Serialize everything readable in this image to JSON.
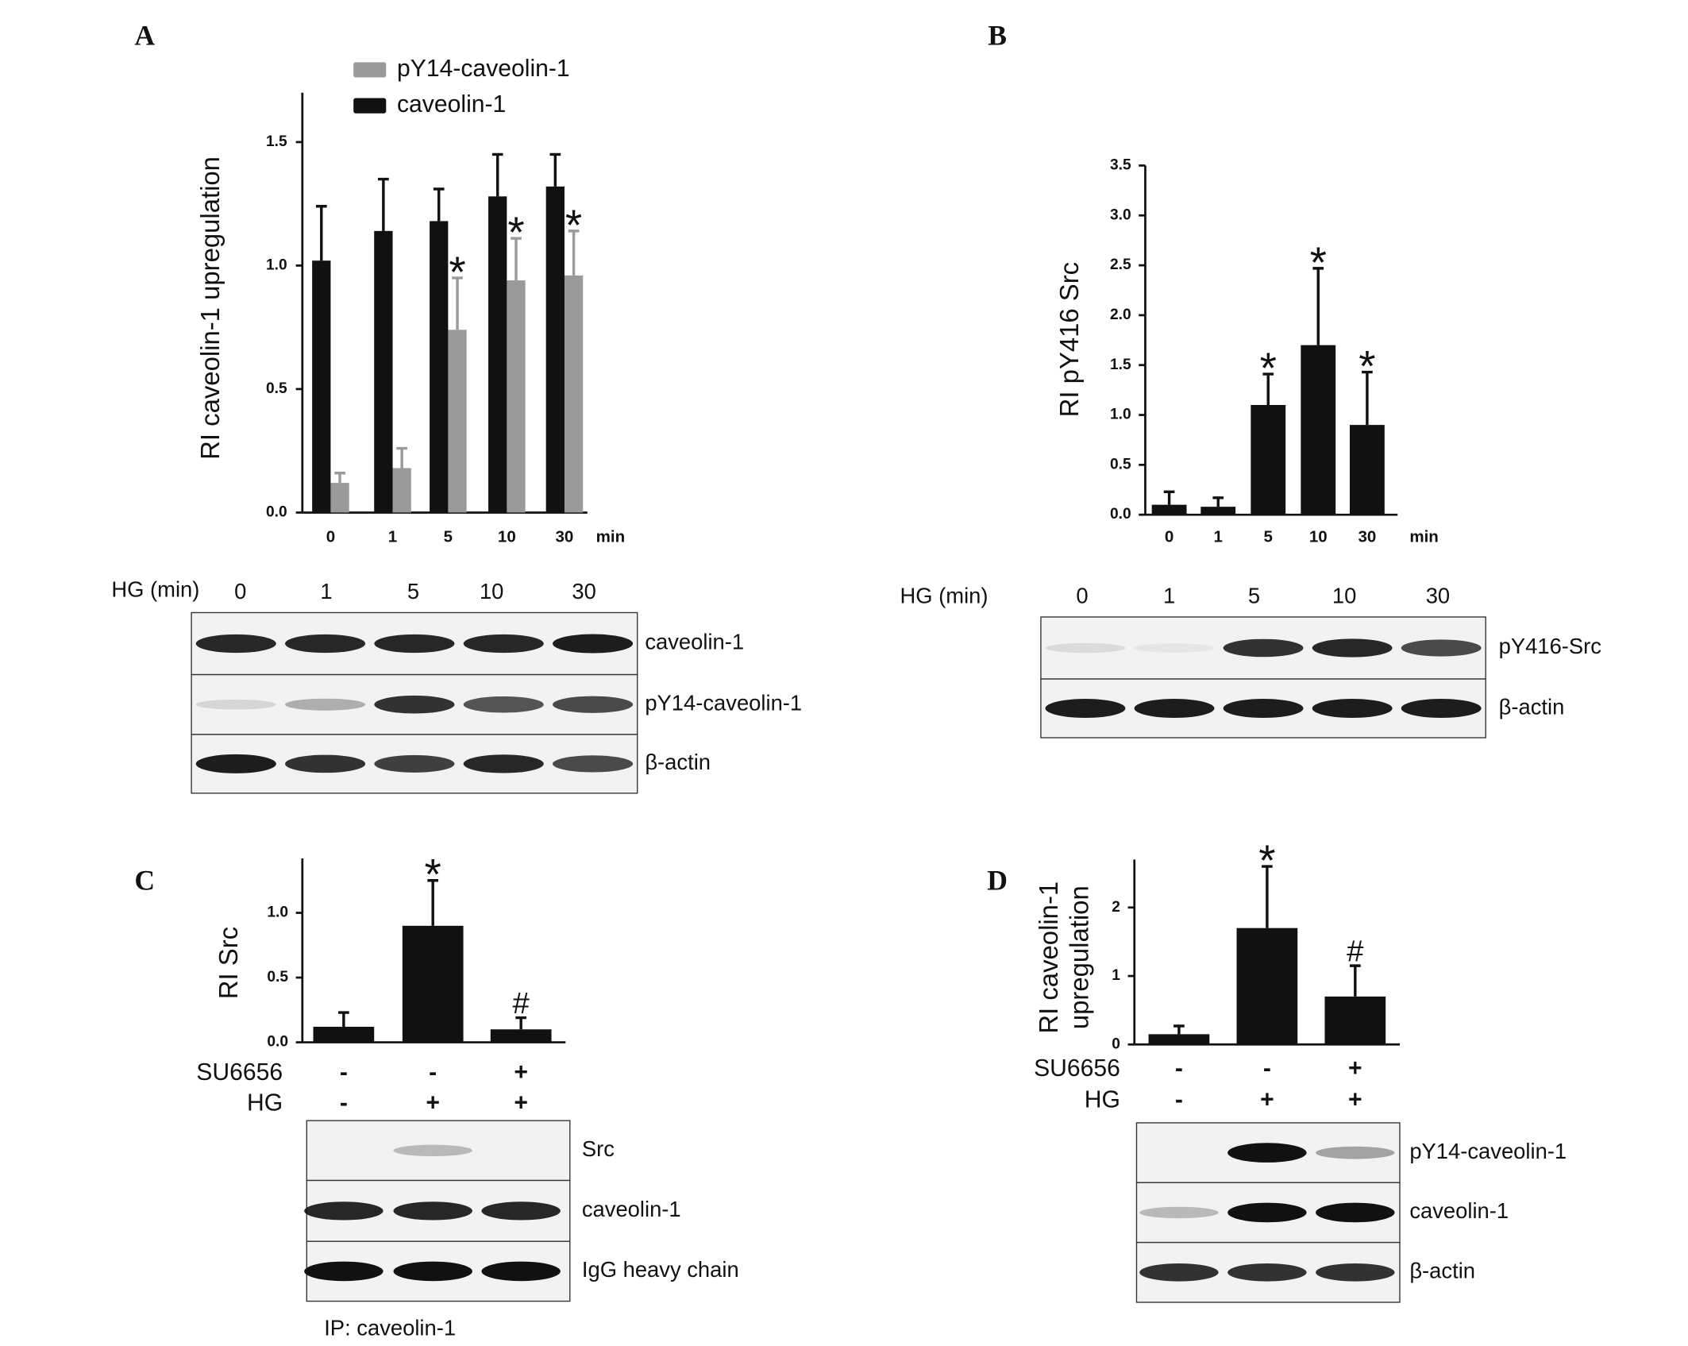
{
  "chart_data": [
    {
      "type": "bar",
      "panel": "A",
      "y_label": "RI caveolin-1 upregulation",
      "categories": [
        "0",
        "1",
        "5",
        "10",
        "30"
      ],
      "x_unit": "min",
      "ylim": [
        0,
        1.7
      ],
      "yticks": [
        {
          "value": 0,
          "label": "0.0"
        },
        {
          "value": 0.5,
          "label": "0.5"
        },
        {
          "value": 1,
          "label": "1.0"
        },
        {
          "value": 1.5,
          "label": "1.5"
        }
      ],
      "series": [
        {
          "name": "pY14-caveolin-1",
          "color": "#9a9a9a",
          "values": [
            0.12,
            0.18,
            0.74,
            0.94,
            0.96
          ],
          "errors": [
            0.04,
            0.08,
            0.21,
            0.17,
            0.18
          ],
          "markers": [
            null,
            null,
            "*",
            "*",
            "*"
          ]
        },
        {
          "name": "caveolin-1",
          "color": "#111111",
          "values": [
            1.02,
            1.14,
            1.18,
            1.28,
            1.32
          ],
          "errors": [
            0.22,
            0.21,
            0.13,
            0.17,
            0.13
          ]
        }
      ],
      "blot": {
        "lane_header": "HG (min)",
        "lanes": [
          "0",
          "1",
          "5",
          "10",
          "30"
        ],
        "rows": [
          "caveolin-1",
          "pY14-caveolin-1",
          "β-actin"
        ]
      }
    },
    {
      "type": "bar",
      "panel": "B",
      "y_label": "RI  pY416 Src",
      "categories": [
        "0",
        "1",
        "5",
        "10",
        "30"
      ],
      "x_unit": "min",
      "ylim": [
        0,
        3.5
      ],
      "yticks": [
        {
          "value": 0,
          "label": "0.0"
        },
        {
          "value": 0.5,
          "label": "0.5"
        },
        {
          "value": 1,
          "label": "1.0"
        },
        {
          "value": 1.5,
          "label": "1.5"
        },
        {
          "value": 2,
          "label": "2.0"
        },
        {
          "value": 2.5,
          "label": "2.5"
        },
        {
          "value": 3,
          "label": "3.0"
        },
        {
          "value": 3.5,
          "label": "3.5"
        }
      ],
      "color": "#111111",
      "values": [
        0.1,
        0.08,
        1.1,
        1.7,
        0.9
      ],
      "errors": [
        0.13,
        0.09,
        0.31,
        0.77,
        0.53
      ],
      "markers": [
        null,
        null,
        "*",
        "*",
        "*"
      ],
      "blot": {
        "lane_header": "HG (min)",
        "lanes": [
          "0",
          "1",
          "5",
          "10",
          "30"
        ],
        "rows": [
          "pY416-Src",
          "β-actin"
        ]
      }
    },
    {
      "type": "bar",
      "panel": "C",
      "y_label": "RI  Src",
      "ylim": [
        0,
        1.42
      ],
      "yticks": [
        {
          "value": 0,
          "label": "0.0"
        },
        {
          "value": 0.5,
          "label": "0.5"
        },
        {
          "value": 1,
          "label": "1.0"
        }
      ],
      "color": "#111111",
      "values": [
        0.12,
        0.9,
        0.1
      ],
      "errors": [
        0.11,
        0.35,
        0.09
      ],
      "markers": [
        null,
        "*",
        "#"
      ],
      "conditions": [
        {
          "name": "SU6656",
          "values": [
            "-",
            "-",
            "+"
          ]
        },
        {
          "name": "HG",
          "values": [
            "-",
            "+",
            "+"
          ]
        }
      ],
      "blot": {
        "rows": [
          "Src",
          "caveolin-1",
          "IgG heavy chain"
        ],
        "note": "IP: caveolin-1"
      }
    },
    {
      "type": "bar",
      "panel": "D",
      "y_label": [
        "RI  caveolin-1",
        "upregulation"
      ],
      "ylim": [
        0,
        2.7
      ],
      "yticks": [
        0,
        1,
        2
      ],
      "color": "#111111",
      "values": [
        0.15,
        1.7,
        0.7
      ],
      "errors": [
        0.12,
        0.9,
        0.45
      ],
      "markers": [
        null,
        "*",
        "#"
      ],
      "conditions": [
        {
          "name": "SU6656",
          "values": [
            "-",
            "-",
            "+"
          ]
        },
        {
          "name": "HG",
          "values": [
            "-",
            "+",
            "+"
          ]
        }
      ],
      "blot": {
        "rows": [
          "pY14-caveolin-1",
          "caveolin-1",
          "β-actin"
        ]
      }
    }
  ]
}
